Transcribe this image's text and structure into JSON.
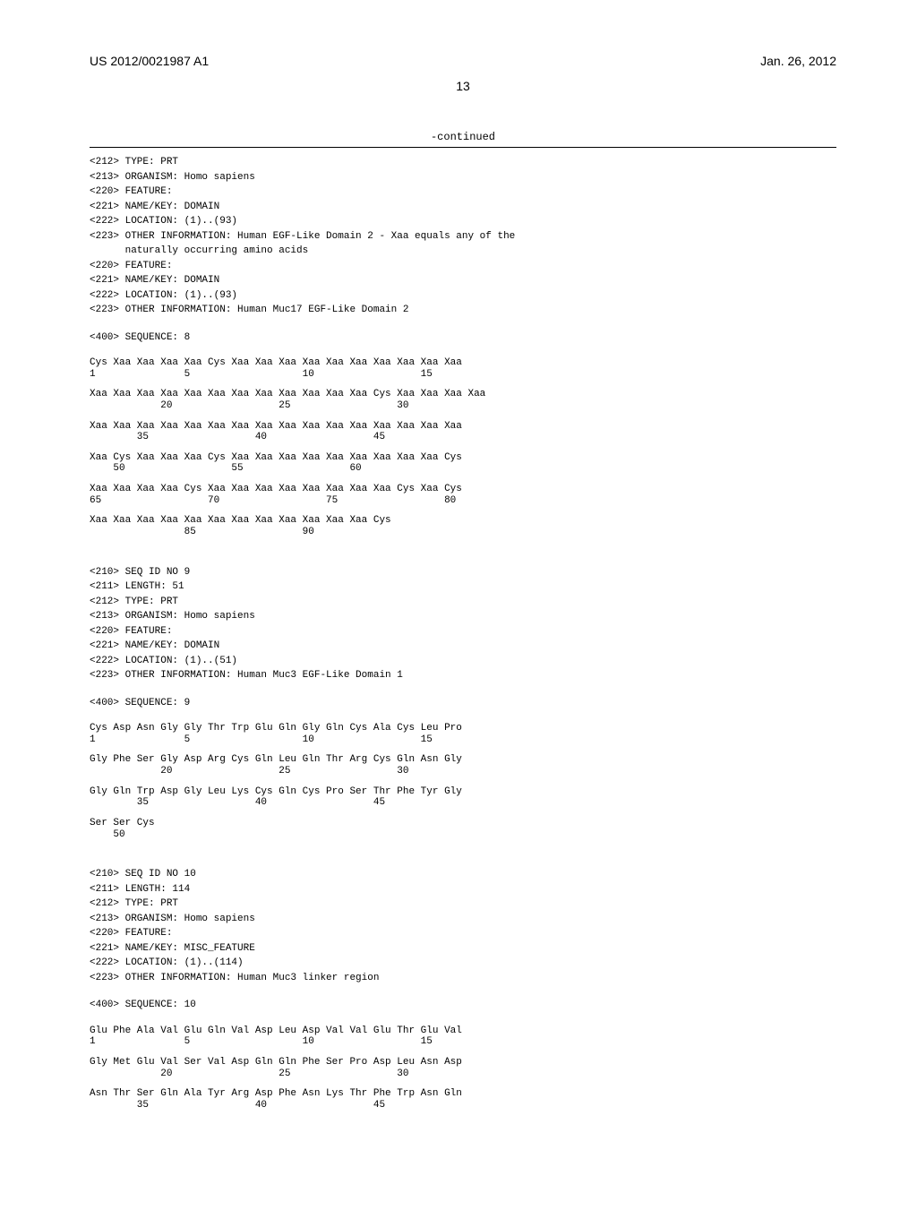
{
  "header": {
    "publication": "US 2012/0021987 A1",
    "date": "Jan. 26, 2012"
  },
  "page_number": "13",
  "continued_label": "-continued",
  "sequences": [
    {
      "headers": [
        "<212> TYPE: PRT",
        "<213> ORGANISM: Homo sapiens",
        "<220> FEATURE:",
        "<221> NAME/KEY: DOMAIN",
        "<222> LOCATION: (1)..(93)",
        "<223> OTHER INFORMATION: Human EGF-Like Domain 2 - Xaa equals any of the",
        "      naturally occurring amino acids",
        "<220> FEATURE:",
        "<221> NAME/KEY: DOMAIN",
        "<222> LOCATION: (1)..(93)",
        "<223> OTHER INFORMATION: Human Muc17 EGF-Like Domain 2"
      ],
      "label": "<400> SEQUENCE: 8",
      "rows": [
        {
          "residues": "Cys Xaa Xaa Xaa Xaa Cys Xaa Xaa Xaa Xaa Xaa Xaa Xaa Xaa Xaa Xaa",
          "numbers": "1               5                   10                  15"
        },
        {
          "residues": "Xaa Xaa Xaa Xaa Xaa Xaa Xaa Xaa Xaa Xaa Xaa Xaa Cys Xaa Xaa Xaa Xaa",
          "numbers": "            20                  25                  30"
        },
        {
          "residues": "Xaa Xaa Xaa Xaa Xaa Xaa Xaa Xaa Xaa Xaa Xaa Xaa Xaa Xaa Xaa Xaa",
          "numbers": "        35                  40                  45"
        },
        {
          "residues": "Xaa Cys Xaa Xaa Xaa Cys Xaa Xaa Xaa Xaa Xaa Xaa Xaa Xaa Xaa Cys",
          "numbers": "    50                  55                  60"
        },
        {
          "residues": "Xaa Xaa Xaa Xaa Cys Xaa Xaa Xaa Xaa Xaa Xaa Xaa Xaa Cys Xaa Cys",
          "numbers": "65                  70                  75                  80"
        },
        {
          "residues": "Xaa Xaa Xaa Xaa Xaa Xaa Xaa Xaa Xaa Xaa Xaa Xaa Cys",
          "numbers": "                85                  90"
        }
      ]
    },
    {
      "headers": [
        "<210> SEQ ID NO 9",
        "<211> LENGTH: 51",
        "<212> TYPE: PRT",
        "<213> ORGANISM: Homo sapiens",
        "<220> FEATURE:",
        "<221> NAME/KEY: DOMAIN",
        "<222> LOCATION: (1)..(51)",
        "<223> OTHER INFORMATION: Human Muc3 EGF-Like Domain 1"
      ],
      "label": "<400> SEQUENCE: 9",
      "rows": [
        {
          "residues": "Cys Asp Asn Gly Gly Thr Trp Glu Gln Gly Gln Cys Ala Cys Leu Pro",
          "numbers": "1               5                   10                  15"
        },
        {
          "residues": "Gly Phe Ser Gly Asp Arg Cys Gln Leu Gln Thr Arg Cys Gln Asn Gly",
          "numbers": "            20                  25                  30"
        },
        {
          "residues": "Gly Gln Trp Asp Gly Leu Lys Cys Gln Cys Pro Ser Thr Phe Tyr Gly",
          "numbers": "        35                  40                  45"
        },
        {
          "residues": "Ser Ser Cys",
          "numbers": "    50"
        }
      ]
    },
    {
      "headers": [
        "<210> SEQ ID NO 10",
        "<211> LENGTH: 114",
        "<212> TYPE: PRT",
        "<213> ORGANISM: Homo sapiens",
        "<220> FEATURE:",
        "<221> NAME/KEY: MISC_FEATURE",
        "<222> LOCATION: (1)..(114)",
        "<223> OTHER INFORMATION: Human Muc3 linker region"
      ],
      "label": "<400> SEQUENCE: 10",
      "rows": [
        {
          "residues": "Glu Phe Ala Val Glu Gln Val Asp Leu Asp Val Val Glu Thr Glu Val",
          "numbers": "1               5                   10                  15"
        },
        {
          "residues": "Gly Met Glu Val Ser Val Asp Gln Gln Phe Ser Pro Asp Leu Asn Asp",
          "numbers": "            20                  25                  30"
        },
        {
          "residues": "Asn Thr Ser Gln Ala Tyr Arg Asp Phe Asn Lys Thr Phe Trp Asn Gln",
          "numbers": "        35                  40                  45"
        }
      ]
    }
  ]
}
